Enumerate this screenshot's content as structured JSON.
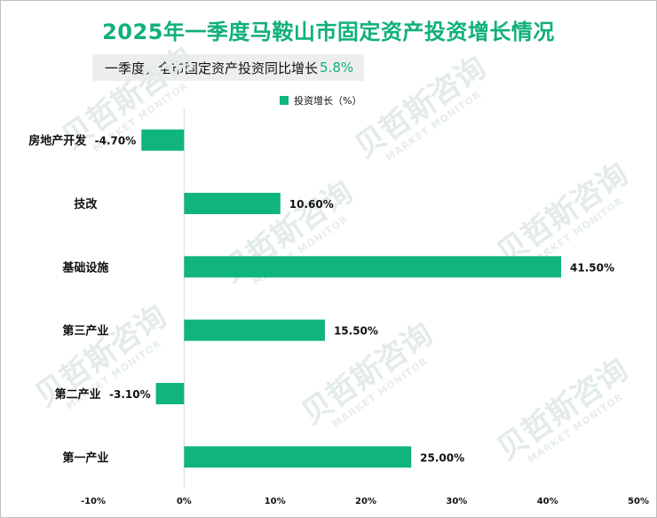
{
  "title": "2025年一季度马鞍山市固定资产投资增长情况",
  "subtitle": {
    "text": "一季度，全市固定资产投资同比增长",
    "highlight": "5.8%"
  },
  "watermark": {
    "cn": "贝哲斯咨询",
    "en": "MARKET MONITOR"
  },
  "colors": {
    "bar": "#10b47e",
    "title": "#10b07a",
    "axis": "#d9d9d9"
  },
  "chart_data": {
    "type": "bar",
    "orientation": "horizontal",
    "categories": [
      "房地产开发",
      "技改",
      "基础设施",
      "第三产业",
      "第二产业",
      "第一产业"
    ],
    "series": [
      {
        "name": "投资增长（%）",
        "values": [
          -4.7,
          10.6,
          41.5,
          15.5,
          -3.1,
          25.0
        ]
      }
    ],
    "data_labels": [
      "-4.70%",
      "10.60%",
      "41.50%",
      "15.50%",
      "-3.10%",
      "25.00%"
    ],
    "xlim": [
      -10,
      50
    ],
    "x_ticks": [
      -10,
      0,
      10,
      20,
      30,
      40,
      50
    ],
    "x_tick_labels": [
      "-10%",
      "0%",
      "10%",
      "20%",
      "30%",
      "40%",
      "50%"
    ],
    "grid": false,
    "legend_position": "top"
  }
}
